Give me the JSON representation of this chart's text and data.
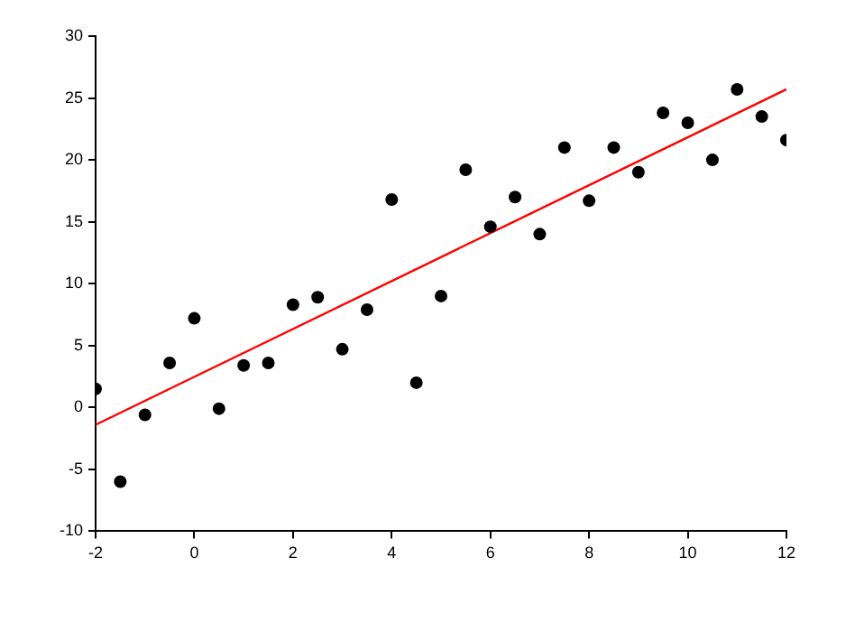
{
  "chart_data": {
    "type": "scatter",
    "xlim": [
      -2,
      12
    ],
    "ylim": [
      -10,
      30
    ],
    "xticks": [
      -2,
      0,
      2,
      4,
      6,
      8,
      10,
      12
    ],
    "yticks": [
      -10,
      -5,
      0,
      5,
      10,
      15,
      20,
      25,
      30
    ],
    "grid": false,
    "legend": false,
    "marker": "circle",
    "series": [
      {
        "color": "#000000",
        "x": [
          -2,
          -1.5,
          -1,
          -0.5,
          0,
          0.5,
          1,
          1.5,
          2,
          2.5,
          3,
          3.5,
          4,
          4.5,
          5,
          5.5,
          6,
          6.5,
          7,
          7.5,
          8,
          8.5,
          9,
          9.5,
          10,
          10.5,
          11,
          11.5,
          12
        ],
        "values": [
          1.5,
          -6,
          -0.6,
          3.6,
          7.2,
          -0.1,
          3.4,
          3.6,
          8.3,
          8.9,
          4.7,
          7.9,
          16.8,
          2.0,
          9.0,
          19.2,
          14.6,
          17.0,
          14.0,
          21.0,
          16.7,
          21.0,
          19.0,
          23.8,
          23.0,
          20.0,
          25.7,
          23.5,
          21.6
        ]
      },
      {
        "type": "line",
        "color": "#ff0000",
        "x": [
          -2,
          12
        ],
        "values": [
          -1.4,
          25.7
        ],
        "marker": "none"
      }
    ]
  }
}
